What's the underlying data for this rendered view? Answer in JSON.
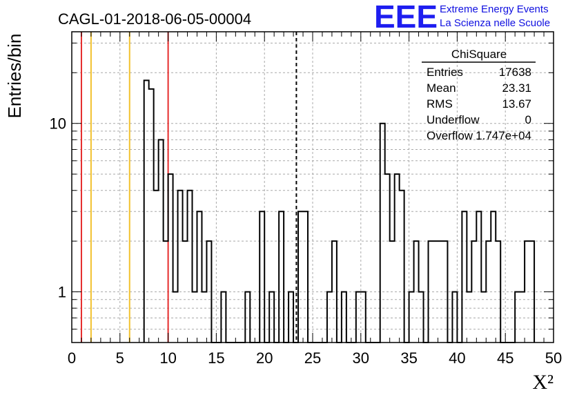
{
  "header": {
    "run_title": "CAGL-01-2018-06-05-00004",
    "logo_text": "EEE",
    "logo_line1": "Extreme Energy Events",
    "logo_line2": "La Scienza nelle Scuole"
  },
  "stats": {
    "name": "ChiSquare",
    "rows": [
      {
        "label": "Entries",
        "value": "17638"
      },
      {
        "label": "Mean",
        "value": "23.31"
      },
      {
        "label": "RMS",
        "value": "13.67"
      },
      {
        "label": "Underflow",
        "value": "0"
      },
      {
        "label": "Overflow",
        "value": "1.747e+04"
      }
    ]
  },
  "chart_data": {
    "type": "bar",
    "style": "histogram-step",
    "xlabel": "X²",
    "ylabel": "Entries/bin",
    "xlim": [
      0,
      50
    ],
    "ylim": [
      0.5,
      35
    ],
    "yscale": "log",
    "grid": true,
    "x_ticks": [
      0,
      5,
      10,
      15,
      20,
      25,
      30,
      35,
      40,
      45,
      50
    ],
    "y_ticks": [
      {
        "value": 1,
        "label": "1"
      },
      {
        "value": 10,
        "label": "10"
      }
    ],
    "bin_width": 0.5,
    "bin_edges_start": 7.5,
    "values": [
      18,
      16,
      4,
      8,
      2,
      5,
      1,
      4,
      2,
      4,
      1,
      3,
      1,
      2,
      0,
      0,
      1,
      0,
      0,
      0,
      0,
      1,
      0,
      0,
      3,
      0,
      1,
      0,
      3,
      0,
      1,
      0,
      3,
      3,
      0,
      0,
      0,
      0,
      1,
      2,
      0,
      1,
      0,
      0,
      1,
      1,
      0,
      0,
      0,
      10,
      5,
      2,
      5,
      4,
      0,
      1,
      2,
      1,
      0,
      2,
      2,
      2,
      2,
      0,
      1,
      0,
      3,
      1,
      2,
      3,
      1,
      2,
      3,
      2,
      0,
      0,
      0,
      1,
      1,
      2,
      2
    ],
    "markers": [
      {
        "x": 1,
        "color": "#e52b2b",
        "style": "solid"
      },
      {
        "x": 2,
        "color": "#f2c12e",
        "style": "solid"
      },
      {
        "x": 6,
        "color": "#f2c12e",
        "style": "solid"
      },
      {
        "x": 10,
        "color": "#e52b2b",
        "style": "solid"
      },
      {
        "x": 23.31,
        "color": "#000000",
        "style": "dashed"
      }
    ]
  }
}
